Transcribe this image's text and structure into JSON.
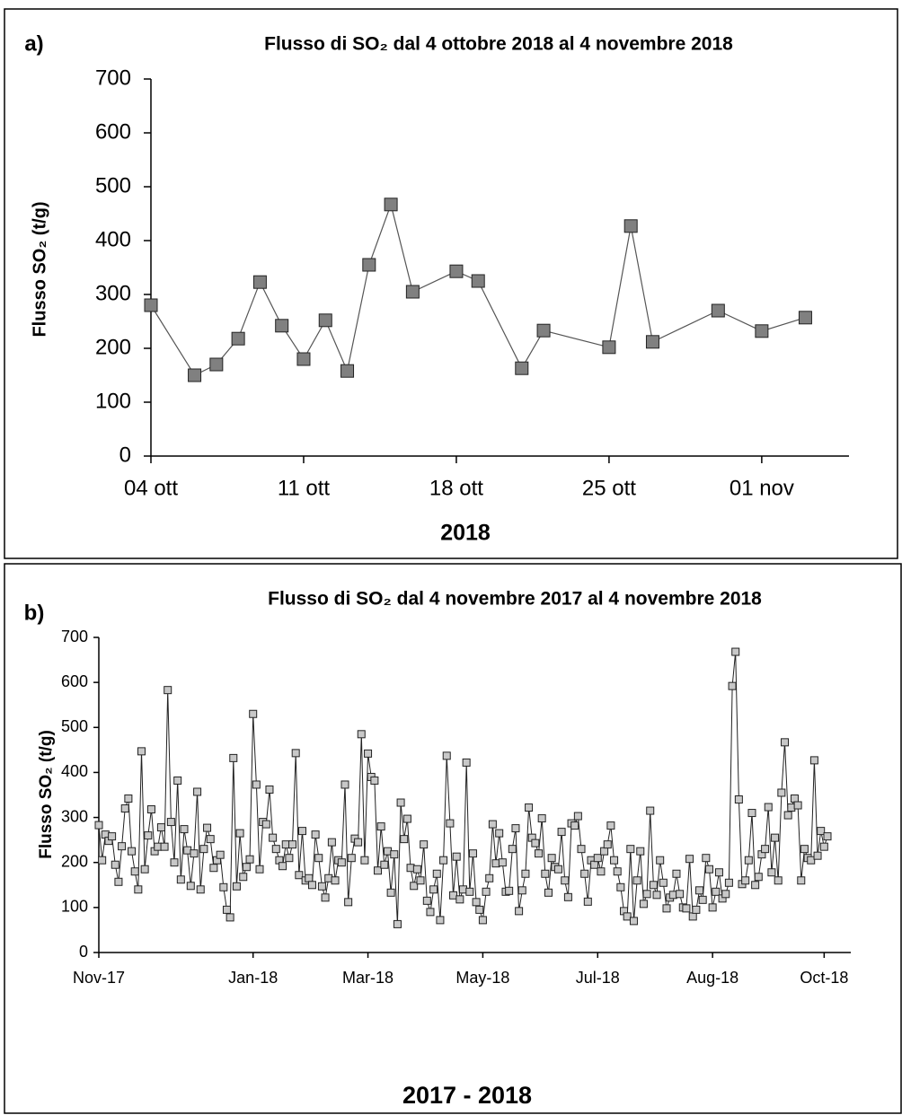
{
  "chart_data": [
    {
      "type": "line",
      "panel_label": "a)",
      "title": "Flusso di SO₂ dal 4 ottobre 2018 al 4 novembre 2018",
      "xlabel": "2018",
      "ylabel": "Flusso SO₂ (t/g)",
      "color": "#808080",
      "line_color": "#555555",
      "x": [
        "2018-10-04",
        "2018-10-06",
        "2018-10-07",
        "2018-10-08",
        "2018-10-09",
        "2018-10-10",
        "2018-10-11",
        "2018-10-12",
        "2018-10-13",
        "2018-10-14",
        "2018-10-15",
        "2018-10-16",
        "2018-10-18",
        "2018-10-19",
        "2018-10-21",
        "2018-10-22",
        "2018-10-25",
        "2018-10-26",
        "2018-10-27",
        "2018-10-30",
        "2018-11-01",
        "2018-11-03"
      ],
      "values": [
        280,
        150,
        170,
        218,
        323,
        242,
        180,
        252,
        158,
        355,
        467,
        305,
        343,
        325,
        163,
        233,
        202,
        427,
        212,
        270,
        232,
        257
      ],
      "xlim": [
        "2018-10-04",
        "2018-11-05"
      ],
      "xticks": [
        {
          "value": "2018-10-04",
          "label": "04 ott"
        },
        {
          "value": "2018-10-11",
          "label": "11 ott"
        },
        {
          "value": "2018-10-18",
          "label": "18 ott"
        },
        {
          "value": "2018-10-25",
          "label": "25 ott"
        },
        {
          "value": "2018-11-01",
          "label": "01 nov"
        }
      ],
      "ylim": [
        0,
        700
      ],
      "yticks": [
        0,
        100,
        200,
        300,
        400,
        500,
        600,
        700
      ]
    },
    {
      "type": "line",
      "panel_label": "b)",
      "title": "Flusso di SO₂ dal 4 novembre 2017 al 4 novembre 2018",
      "xlabel": "2017 - 2018",
      "ylabel": "Flusso SO₂ (t/g)",
      "color": "#c8c8c8",
      "line_color": "#222222",
      "categories": [
        "Nov-17",
        null,
        null,
        null,
        null,
        null,
        null,
        null,
        null,
        null,
        null,
        null,
        null,
        null,
        null,
        null,
        null,
        null,
        null,
        null,
        null,
        null,
        null,
        null,
        null,
        null,
        null,
        null,
        null,
        null,
        null,
        null,
        null,
        null,
        null,
        null,
        null,
        null,
        null,
        null,
        null,
        null,
        null,
        null,
        null,
        null,
        null,
        "Jan-18",
        null,
        null,
        null,
        null,
        null,
        null,
        null,
        null,
        null,
        null,
        null,
        null,
        null,
        null,
        null,
        null,
        null,
        null,
        null,
        null,
        null,
        null,
        null,
        null,
        null,
        null,
        null,
        null,
        null,
        null,
        null,
        null,
        null,
        null,
        "Mar-18",
        null,
        null,
        null,
        null,
        null,
        null,
        null,
        null,
        null,
        null,
        null,
        null,
        null,
        null,
        null,
        null,
        null,
        null,
        null,
        null,
        null,
        null,
        null,
        null,
        null,
        null,
        null,
        null,
        null,
        null,
        null,
        null,
        null,
        null,
        "May-18",
        null,
        null,
        null,
        null,
        null,
        null,
        null,
        null,
        null,
        null,
        null,
        null,
        null,
        null,
        null,
        null,
        null,
        null,
        null,
        null,
        null,
        null,
        null,
        null,
        null,
        null,
        null,
        null,
        null,
        null,
        null,
        null,
        null,
        null,
        "Jul-18",
        null,
        null,
        null,
        null,
        null,
        null,
        null,
        null,
        null,
        null,
        null,
        null,
        null,
        null,
        null,
        null,
        null,
        null,
        null,
        null,
        null,
        null,
        null,
        null,
        null,
        null,
        null,
        null,
        null,
        null,
        null,
        null,
        null,
        null,
        "Aug-18",
        null,
        null,
        null,
        null,
        null,
        null,
        null,
        null,
        null,
        null,
        null,
        null,
        null,
        null,
        null,
        null,
        null,
        null,
        null,
        null,
        null,
        null,
        null,
        null,
        null,
        null,
        null,
        null,
        null,
        null,
        null,
        null,
        null,
        "Oct-18",
        null
      ],
      "values": [
        283,
        205,
        262,
        248,
        258,
        195,
        157,
        236,
        320,
        342,
        225,
        180,
        140,
        447,
        185,
        260,
        318,
        225,
        235,
        278,
        235,
        583,
        290,
        200,
        382,
        162,
        274,
        227,
        148,
        220,
        357,
        140,
        230,
        277,
        252,
        188,
        205,
        217,
        145,
        95,
        78,
        432,
        147,
        265,
        168,
        190,
        207,
        530,
        373,
        185,
        290,
        285,
        362,
        255,
        230,
        205,
        192,
        240,
        210,
        240,
        443,
        172,
        270,
        160,
        165,
        150,
        262,
        210,
        147,
        122,
        165,
        245,
        160,
        205,
        200,
        373,
        112,
        210,
        253,
        245,
        485,
        205,
        442,
        390,
        382,
        182,
        280,
        195,
        225,
        133,
        218,
        63,
        333,
        252,
        297,
        188,
        148,
        185,
        160,
        240,
        115,
        90,
        140,
        175,
        72,
        205,
        437,
        287,
        127,
        213,
        118,
        140,
        422,
        135,
        220,
        112,
        95,
        72,
        135,
        165,
        285,
        198,
        265,
        200,
        135,
        137,
        230,
        276,
        92,
        138,
        175,
        322,
        255,
        243,
        220,
        298,
        175,
        133,
        210,
        190,
        185,
        268,
        160,
        123,
        287,
        282,
        303,
        230,
        175,
        113,
        205,
        195,
        210,
        180,
        225,
        240,
        282,
        205,
        180,
        145,
        92,
        80,
        230,
        70,
        160,
        225,
        108,
        130,
        315,
        150,
        128,
        205,
        155,
        98,
        122,
        128,
        175,
        130,
        100,
        98,
        208,
        80,
        95,
        138,
        117,
        210,
        185,
        100,
        135,
        178,
        120,
        130,
        155,
        592,
        668,
        340,
        152,
        160,
        205,
        310,
        150,
        168,
        218,
        230,
        323,
        178,
        255,
        160,
        355,
        467,
        305,
        322,
        342,
        327,
        160,
        230,
        210,
        205,
        427,
        215,
        270,
        235,
        258
      ],
      "ylim": [
        0,
        700
      ],
      "yticks": [
        0,
        100,
        200,
        300,
        400,
        500,
        600,
        700
      ]
    }
  ]
}
